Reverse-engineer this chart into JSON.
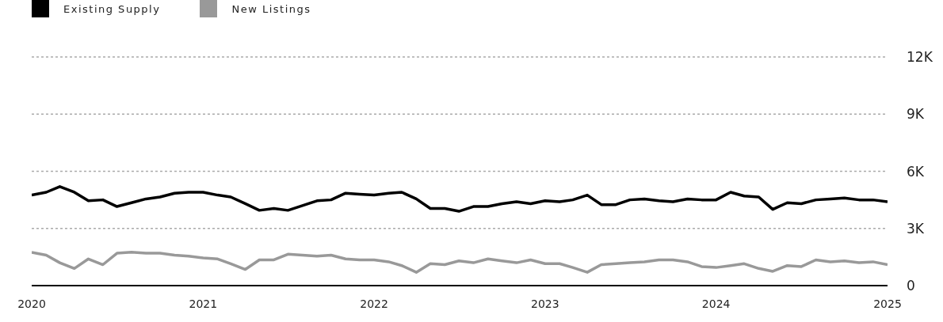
{
  "chart_data": {
    "type": "line",
    "x": [
      "2020-01",
      "2020-02",
      "2020-03",
      "2020-04",
      "2020-05",
      "2020-06",
      "2020-07",
      "2020-08",
      "2020-09",
      "2020-10",
      "2020-11",
      "2020-12",
      "2021-01",
      "2021-02",
      "2021-03",
      "2021-04",
      "2021-05",
      "2021-06",
      "2021-07",
      "2021-08",
      "2021-09",
      "2021-10",
      "2021-11",
      "2021-12",
      "2022-01",
      "2022-02",
      "2022-03",
      "2022-04",
      "2022-05",
      "2022-06",
      "2022-07",
      "2022-08",
      "2022-09",
      "2022-10",
      "2022-11",
      "2022-12",
      "2023-01",
      "2023-02",
      "2023-03",
      "2023-04",
      "2023-05",
      "2023-06",
      "2023-07",
      "2023-08",
      "2023-09",
      "2023-10",
      "2023-11",
      "2023-12",
      "2024-01",
      "2024-02",
      "2024-03",
      "2024-04",
      "2024-05",
      "2024-06",
      "2024-07",
      "2024-08",
      "2024-09",
      "2024-10",
      "2024-11",
      "2024-12",
      "2025-01"
    ],
    "series": [
      {
        "name": "Existing Supply",
        "color": "#000000",
        "values": [
          4750,
          4900,
          5200,
          4900,
          4450,
          4500,
          4150,
          4350,
          4550,
          4650,
          4850,
          4900,
          4900,
          4750,
          4650,
          4300,
          3950,
          4050,
          3950,
          4200,
          4450,
          4500,
          4850,
          4800,
          4750,
          4850,
          4900,
          4550,
          4050,
          4050,
          3900,
          4150,
          4150,
          4300,
          4400,
          4300,
          4450,
          4400,
          4500,
          4750,
          4250,
          4250,
          4500,
          4550,
          4450,
          4400,
          4550,
          4500,
          4500,
          4900,
          4700,
          4650,
          4000,
          4350,
          4300,
          4500,
          4550,
          4600,
          4500,
          4500,
          4400
        ]
      },
      {
        "name": "New Listings",
        "color": "#999999",
        "values": [
          1750,
          1600,
          1200,
          900,
          1400,
          1100,
          1700,
          1750,
          1700,
          1700,
          1600,
          1550,
          1450,
          1400,
          1150,
          850,
          1350,
          1350,
          1650,
          1600,
          1550,
          1600,
          1400,
          1350,
          1350,
          1250,
          1050,
          700,
          1150,
          1100,
          1300,
          1200,
          1400,
          1300,
          1200,
          1350,
          1150,
          1150,
          950,
          700,
          1100,
          1150,
          1200,
          1250,
          1350,
          1350,
          1250,
          1000,
          950,
          1050,
          1150,
          900,
          750,
          1050,
          1000,
          1350,
          1250,
          1300,
          1200,
          1250,
          1100
        ]
      }
    ],
    "xlim": [
      "2020-01",
      "2025-01"
    ],
    "xticks": [
      "2020",
      "2021",
      "2022",
      "2023",
      "2024",
      "2025"
    ],
    "ylim": [
      0,
      12000
    ],
    "yticks": [
      {
        "value": 0,
        "label": "0"
      },
      {
        "value": 3000,
        "label": "3K"
      },
      {
        "value": 6000,
        "label": "6K"
      },
      {
        "value": 9000,
        "label": "9K"
      },
      {
        "value": 12000,
        "label": "12K"
      }
    ],
    "grid": "y",
    "legend": "top left",
    "marker": "none",
    "line_style": "solid"
  }
}
